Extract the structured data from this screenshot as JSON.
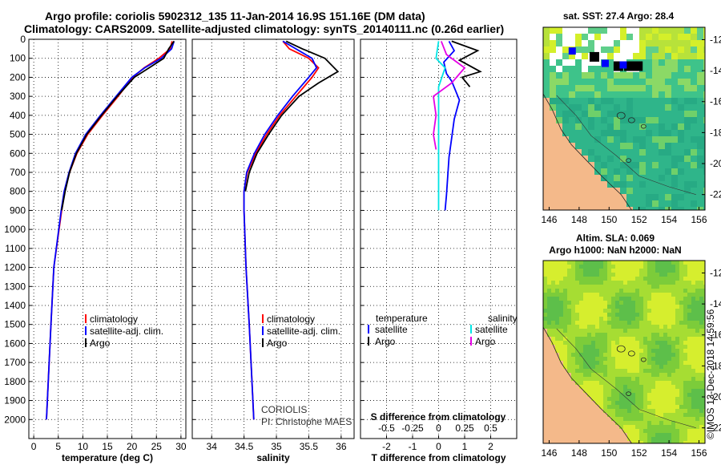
{
  "header": {
    "line1": "Argo profile: coriolis 5902312_135 11-Jan-2014 16.9S 151.16E (DM data)",
    "line2": "Climatology: CARS2009. Satellite-adjusted climatology: synTS_20140111.nc (0.26d earlier)"
  },
  "colors": {
    "climatology": "#ff0000",
    "satellite": "#0000ff",
    "argo": "#000000",
    "sal_sat": "#00e5e5",
    "sal_argo": "#e600e6",
    "land": "#f4b98a"
  },
  "chart_data": [
    {
      "type": "line",
      "name": "temperature",
      "xlabel": "temperature (deg C)",
      "ylabel": "depth",
      "xlim": [
        -1,
        31
      ],
      "ylim": [
        0,
        2100
      ],
      "xticks": [
        0,
        5,
        10,
        15,
        20,
        25,
        30
      ],
      "yticks": [
        0,
        100,
        200,
        300,
        400,
        500,
        600,
        700,
        800,
        900,
        1000,
        1100,
        1200,
        1300,
        1400,
        1500,
        1600,
        1700,
        1800,
        1900,
        2000
      ],
      "legend": [
        "climatology",
        "satellite-adj. clim.",
        "Argo"
      ],
      "series": [
        {
          "name": "climatology",
          "color": "climatology",
          "x": [
            28.2,
            27.8,
            25.5,
            22.5,
            20.2,
            17.2,
            14.0,
            11.0,
            8.8,
            7.3,
            6.3,
            5.7,
            4.1,
            3.5,
            2.6
          ],
          "y": [
            10,
            50,
            100,
            150,
            200,
            300,
            400,
            500,
            600,
            700,
            800,
            900,
            1200,
            1500,
            2000
          ]
        },
        {
          "name": "satellite-adj. clim.",
          "color": "satellite",
          "x": [
            28.6,
            28.1,
            26.0,
            22.6,
            20.0,
            16.8,
            13.6,
            10.6,
            8.5,
            7.2,
            6.2,
            5.6,
            4.1,
            3.5,
            2.6
          ],
          "y": [
            10,
            50,
            100,
            150,
            200,
            300,
            400,
            500,
            600,
            700,
            800,
            900,
            1200,
            1500,
            2000
          ]
        },
        {
          "name": "Argo",
          "color": "argo",
          "x": [
            28.6,
            27.5,
            26.5,
            23.5,
            20.5,
            17.0,
            13.8,
            10.8,
            8.7,
            7.3,
            6.4,
            5.7
          ],
          "y": [
            10,
            50,
            100,
            150,
            200,
            300,
            400,
            500,
            600,
            700,
            800,
            900
          ]
        }
      ]
    },
    {
      "type": "line",
      "name": "salinity",
      "xlabel": "salinity",
      "ylabel": "depth",
      "xlim": [
        33.7,
        36.2
      ],
      "ylim": [
        0,
        2100
      ],
      "xticks": [
        34,
        34.5,
        35,
        35.5,
        36
      ],
      "legend": [
        "climatology",
        "satellite-adj. clim.",
        "Argo"
      ],
      "annotation": [
        "CORIOLIS",
        "PI: Christophe MAES"
      ],
      "series": [
        {
          "name": "climatology",
          "color": "climatology",
          "x": [
            35.1,
            35.2,
            35.5,
            35.65,
            35.55,
            35.3,
            35.05,
            34.85,
            34.68,
            34.55,
            34.5,
            34.5,
            34.53,
            34.58,
            34.65
          ],
          "y": [
            10,
            50,
            100,
            150,
            200,
            300,
            400,
            500,
            600,
            700,
            800,
            900,
            1200,
            1500,
            2000
          ]
        },
        {
          "name": "satellite-adj. clim.",
          "color": "satellite",
          "x": [
            35.1,
            35.3,
            35.55,
            35.62,
            35.5,
            35.25,
            35.02,
            34.82,
            34.66,
            34.54,
            34.5,
            34.5,
            34.53,
            34.58,
            34.65
          ],
          "y": [
            10,
            50,
            100,
            150,
            200,
            300,
            400,
            500,
            600,
            700,
            800,
            900,
            1200,
            1500,
            2000
          ]
        },
        {
          "name": "Argo",
          "color": "argo",
          "x": [
            35.15,
            35.4,
            35.75,
            35.95,
            35.65,
            35.35,
            35.08,
            34.88,
            34.7,
            34.58,
            34.52
          ],
          "y": [
            10,
            50,
            100,
            170,
            230,
            300,
            400,
            500,
            600,
            700,
            800
          ]
        }
      ]
    },
    {
      "type": "line",
      "name": "difference",
      "xlabel": "T difference from climatology",
      "x2label": "S difference from climatology",
      "xlim": [
        -3,
        3
      ],
      "ylim": [
        0,
        2100
      ],
      "xticks": [
        -2,
        -1,
        0,
        1,
        2
      ],
      "x2ticks": [
        -0.5,
        -0.25,
        0,
        0.25,
        0.5
      ],
      "x2ticklabels": [
        "-0.5",
        "-0.25",
        "0",
        "0.25",
        "0.5"
      ],
      "legend_headers": [
        "temperature",
        "salinity"
      ],
      "legend_left": [
        "satellite",
        "Argo"
      ],
      "legend_right": [
        "satellite",
        "Argo"
      ],
      "series": [
        {
          "name": "T satellite",
          "color": "satellite",
          "x": [
            0.4,
            0.6,
            0.2,
            0.3,
            0.5,
            0.8,
            0.6,
            0.5,
            0.4,
            0.35,
            0.3,
            0.25
          ],
          "y": [
            10,
            60,
            120,
            180,
            220,
            320,
            420,
            520,
            620,
            720,
            820,
            900
          ]
        },
        {
          "name": "T Argo",
          "color": "argo",
          "x": [
            0.5,
            1.5,
            0.8,
            1.6,
            0.9,
            1.2
          ],
          "y": [
            10,
            60,
            110,
            170,
            200,
            250
          ]
        },
        {
          "name": "S satellite",
          "color": "sal_sat",
          "x": [
            0.0,
            -0.1,
            0.25,
            0.0,
            0.0,
            0.0,
            0.0,
            0.0,
            0.0,
            0.0
          ],
          "y": [
            10,
            100,
            150,
            250,
            350,
            450,
            550,
            650,
            750,
            900
          ]
        },
        {
          "name": "S Argo",
          "color": "sal_argo",
          "x": [
            0.1,
            0.3,
            1.0,
            0.5,
            -0.2,
            -0.1,
            -0.2,
            -0.1
          ],
          "y": [
            10,
            80,
            150,
            230,
            300,
            400,
            500,
            580
          ]
        }
      ]
    },
    {
      "type": "heatmap",
      "name": "sst_map",
      "title": "sat. SST: 27.4 Argo: 28.4",
      "xticks": [
        146,
        148,
        150,
        152,
        154,
        156
      ],
      "yticks": [
        -12,
        -14,
        -16,
        -18,
        -20,
        -22
      ],
      "xlim": [
        145.6,
        156.4
      ],
      "ylim": [
        -23,
        -11.2
      ]
    },
    {
      "type": "heatmap",
      "name": "sla_map",
      "title": "Altim. SLA: 0.069",
      "subtitle": "Argo h1000: NaN h2000: NaN",
      "xticks": [
        146,
        148,
        150,
        152,
        154,
        156
      ],
      "yticks": [
        -12,
        -14,
        -16,
        -18,
        -20,
        -22
      ],
      "xlim": [
        145.6,
        156.4
      ],
      "ylim": [
        -23,
        -11.2
      ]
    }
  ],
  "credit": "©IMOS 13-Dec-2018 14:59:56"
}
